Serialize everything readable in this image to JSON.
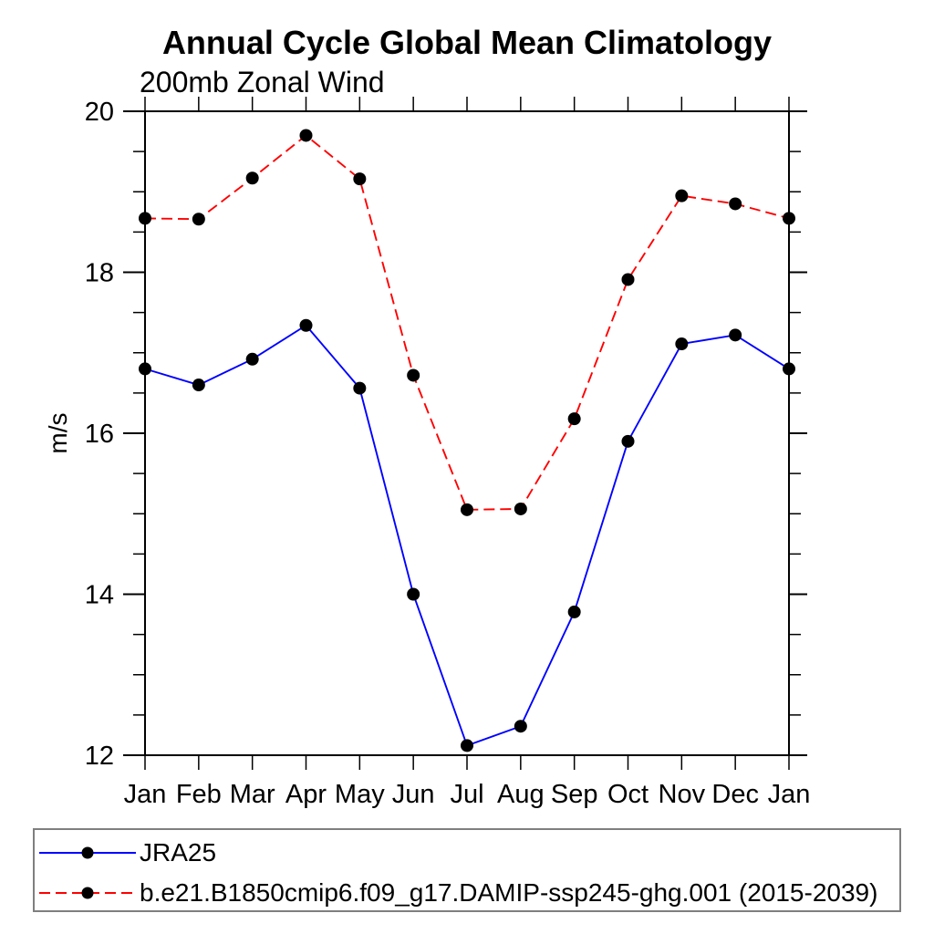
{
  "chart": {
    "title": "Annual Cycle Global Mean Climatology",
    "subtitle": "200mb Zonal Wind",
    "ylabel": "m/s"
  },
  "chart_data": {
    "type": "line",
    "title": "Annual Cycle Global Mean Climatology",
    "subtitle": "200mb Zonal Wind",
    "xlabel": "",
    "ylabel": "m/s",
    "categories": [
      "Jan",
      "Feb",
      "Mar",
      "Apr",
      "May",
      "Jun",
      "Jul",
      "Aug",
      "Sep",
      "Oct",
      "Nov",
      "Dec",
      "Jan"
    ],
    "ylim": [
      12,
      20
    ],
    "y_major_ticks": [
      12,
      14,
      16,
      18,
      20
    ],
    "y_minor_step": 0.5,
    "grid": false,
    "legend_position": "bottom-box",
    "axis_color": "#000000",
    "marker": {
      "shape": "circle",
      "color": "#000000",
      "radius": 7
    },
    "series": [
      {
        "name": "JRA25",
        "color": "#0000ff",
        "line_style": "solid",
        "values": [
          16.8,
          16.6,
          16.92,
          17.34,
          16.56,
          14.0,
          12.12,
          12.36,
          13.78,
          15.9,
          17.11,
          17.22,
          16.8
        ]
      },
      {
        "name": "b.e21.B1850cmip6.f09_g17.DAMIP-ssp245-ghg.001 (2015-2039)",
        "color": "#ff0000",
        "line_style": "dashed",
        "values": [
          18.67,
          18.66,
          19.17,
          19.7,
          19.16,
          16.72,
          15.05,
          15.06,
          16.18,
          17.91,
          18.95,
          18.85,
          18.67
        ]
      }
    ]
  }
}
